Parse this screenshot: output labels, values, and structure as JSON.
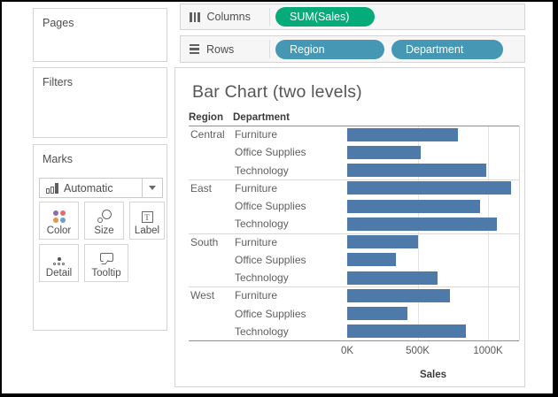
{
  "shelves": {
    "columns": {
      "label": "Columns",
      "pills": [
        {
          "label": "SUM(Sales)",
          "kind": "measure",
          "width": 112
        }
      ]
    },
    "rows": {
      "label": "Rows",
      "pills": [
        {
          "label": "Region",
          "kind": "dimension",
          "width": 123
        },
        {
          "label": "Department",
          "kind": "dimension",
          "width": 126
        }
      ]
    }
  },
  "panels": {
    "pages_label": "Pages",
    "filters_label": "Filters",
    "marks_label": "Marks",
    "mark_type": "Automatic",
    "mark_buttons": {
      "color": "Color",
      "size": "Size",
      "label": "Label",
      "detail": "Detail",
      "tooltip": "Tooltip"
    },
    "color_icon_dots": [
      "#8f6bac",
      "#e26d6d",
      "#e9934e",
      "#6f9fc8"
    ]
  },
  "chart_data": {
    "type": "bar",
    "orientation": "horizontal",
    "title": "Bar Chart (two levels)",
    "column_headers": {
      "region": "Region",
      "department": "Department"
    },
    "xlabel": "Sales",
    "unit": "K (thousands of sales)",
    "xlim": [
      0,
      1220
    ],
    "x_ticks": [
      {
        "label": "0K",
        "value": 0
      },
      {
        "label": "500K",
        "value": 500
      },
      {
        "label": "1000K",
        "value": 1000
      }
    ],
    "grid": "vertical gridlines at ticks",
    "legend": "none",
    "groups": [
      {
        "region": "Central",
        "rows": [
          {
            "department": "Furniture",
            "value": 785
          },
          {
            "department": "Office Supplies",
            "value": 525
          },
          {
            "department": "Technology",
            "value": 985
          }
        ]
      },
      {
        "region": "East",
        "rows": [
          {
            "department": "Furniture",
            "value": 1165
          },
          {
            "department": "Office Supplies",
            "value": 945
          },
          {
            "department": "Technology",
            "value": 1065
          }
        ]
      },
      {
        "region": "South",
        "rows": [
          {
            "department": "Furniture",
            "value": 505
          },
          {
            "department": "Office Supplies",
            "value": 345
          },
          {
            "department": "Technology",
            "value": 640
          }
        ]
      },
      {
        "region": "West",
        "rows": [
          {
            "department": "Furniture",
            "value": 730
          },
          {
            "department": "Office Supplies",
            "value": 430
          },
          {
            "department": "Technology",
            "value": 840
          }
        ]
      }
    ]
  },
  "colors": {
    "measure_pill": "#06ab7a",
    "dimension_pill": "#4697b4",
    "bar": "#4d7aa9"
  }
}
